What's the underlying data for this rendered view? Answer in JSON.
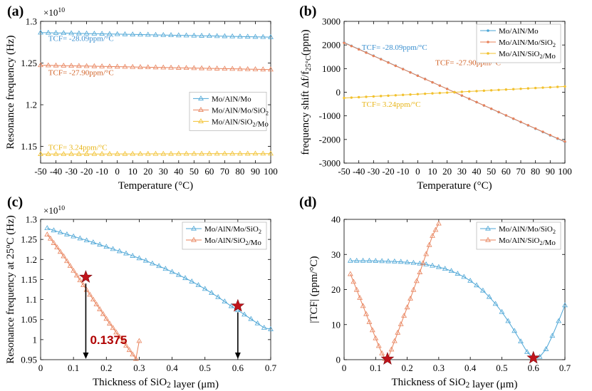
{
  "colors": {
    "mo_aln_mo": "#4da6d6",
    "sio2_top": "#e8815a",
    "sio2_mid": "#f2c12e",
    "star": "#c0141b",
    "tcf_blue": "#3a8fcf",
    "tcf_orange": "#d2642a",
    "tcf_yellow": "#e8b518"
  },
  "chart_data": [
    {
      "type": "line",
      "panel": "(a)",
      "xlabel": "Temperature (°C)",
      "ylabel": "Resonance frequency (Hz)",
      "y_multiplier": "×10",
      "y_exponent": "10",
      "xlim": [
        -50,
        100
      ],
      "ylim": [
        1.13,
        1.3
      ],
      "xticks": [
        -50,
        -40,
        -30,
        -20,
        -10,
        0,
        10,
        20,
        30,
        40,
        50,
        60,
        70,
        80,
        90,
        100
      ],
      "xtick_labels": [
        "-50",
        "-40",
        "-30",
        "-20",
        "-10",
        "0",
        "10",
        "20",
        "30",
        "40",
        "50",
        "60",
        "70",
        "80",
        "90",
        "100"
      ],
      "yticks": [
        1.15,
        1.2,
        1.25,
        1.3
      ],
      "ytick_labels": [
        "1.15",
        "1.2",
        "1.25",
        "1.3"
      ],
      "legend_position": "center-right",
      "series": [
        {
          "name": "Mo/AlN/Mo",
          "name_html": "Mo/AlN/Mo",
          "color": "#4da6d6",
          "marker": "triangle",
          "x_start": -50,
          "x_end": 100,
          "x_step": 5,
          "y_start": 1.2865,
          "y_end": 1.2811
        },
        {
          "name": "Mo/AlN/Mo/SiO2",
          "color": "#e8815a",
          "marker": "triangle",
          "x_start": -50,
          "x_end": 100,
          "x_step": 5,
          "y_start": 1.2474,
          "y_end": 1.2422
        },
        {
          "name": "Mo/AlN/SiO2/Mo",
          "color": "#f2c12e",
          "marker": "triangle",
          "x_start": -50,
          "x_end": 100,
          "x_step": 5,
          "y_start": 1.1408,
          "y_end": 1.1414
        }
      ],
      "annotations": [
        {
          "text": "TCF= -28.09ppm/°C",
          "color": "#3a8fcf",
          "x": -45,
          "y": 1.2765
        },
        {
          "text": "TCF= -27.90ppm/°C",
          "color": "#d2642a",
          "x": -45,
          "y": 1.2355
        },
        {
          "text": "TCF= 3.24ppm/°C",
          "color": "#e8b518",
          "x": -45,
          "y": 1.146
        }
      ]
    },
    {
      "type": "line",
      "panel": "(b)",
      "xlabel": "Temperature (°C)",
      "ylabel": "frequency shift Δf/f",
      "ylabel_sub": "25°C",
      "ylabel_unit": "(ppm)",
      "xlim": [
        -50,
        100
      ],
      "ylim": [
        -3000,
        3000
      ],
      "xticks": [
        -50,
        -40,
        -30,
        -20,
        -10,
        0,
        10,
        20,
        30,
        40,
        50,
        60,
        70,
        80,
        90,
        100
      ],
      "xtick_labels": [
        "-50",
        "-40",
        "-30",
        "-20",
        "-10",
        "0",
        "10",
        "20",
        "30",
        "40",
        "50",
        "60",
        "70",
        "80",
        "90",
        "100"
      ],
      "yticks": [
        -3000,
        -2000,
        -1000,
        0,
        1000,
        2000,
        3000
      ],
      "ytick_labels": [
        "-3000",
        "-2000",
        "-1000",
        "0",
        "1000",
        "2000",
        "3000"
      ],
      "legend_position": "top-right",
      "series": [
        {
          "name": "Mo/AlN/Mo",
          "color": "#4da6d6",
          "marker": "dot",
          "x_start": -50,
          "x_end": 100,
          "x_step": 5,
          "y_start": 2107,
          "y_end": -2107
        },
        {
          "name": "Mo/AlN/Mo/SiO2",
          "color": "#e8815a",
          "marker": "dot",
          "x_start": -50,
          "x_end": 100,
          "x_step": 5,
          "y_start": 2093,
          "y_end": -2093
        },
        {
          "name": "Mo/AlN/SiO2/Mo",
          "color": "#f2c12e",
          "marker": "dot",
          "x_start": -50,
          "x_end": 100,
          "x_step": 5,
          "y_start": -243,
          "y_end": 243
        }
      ],
      "annotations": [
        {
          "text": "TCF= -28.09ppm/°C",
          "color": "#3a8fcf",
          "x": -38,
          "y": 1800
        },
        {
          "text": "TCF= -27.90ppm/°C",
          "color": "#d2642a",
          "x": 12,
          "y": 1150
        },
        {
          "text": "TCF= 3.24ppm/°C",
          "color": "#e8b518",
          "x": -38,
          "y": -620
        }
      ]
    },
    {
      "type": "line",
      "panel": "(c)",
      "xlabel": "Thickness of SiO2 layer (μm)",
      "ylabel": "Resonance frequency at 25°C (Hz)",
      "y_multiplier": "×10",
      "y_exponent": "10",
      "xlim": [
        0,
        0.7
      ],
      "ylim": [
        0.95,
        1.3
      ],
      "xticks": [
        0,
        0.1,
        0.2,
        0.3,
        0.4,
        0.5,
        0.6,
        0.7
      ],
      "xtick_labels": [
        "0",
        "0.1",
        "0.2",
        "0.3",
        "0.4",
        "0.5",
        "0.6",
        "0.7"
      ],
      "yticks": [
        0.95,
        1,
        1.05,
        1.1,
        1.15,
        1.2,
        1.25,
        1.3
      ],
      "ytick_labels": [
        "0.95",
        "1",
        "1.05",
        "1.1",
        "1.15",
        "1.2",
        "1.25",
        "1.3"
      ],
      "legend_position": "top-right",
      "series": [
        {
          "name": "Mo/AlN/Mo/SiO2",
          "color": "#4da6d6",
          "marker": "triangle",
          "x": [
            0.02,
            0.04,
            0.06,
            0.08,
            0.1,
            0.12,
            0.14,
            0.16,
            0.18,
            0.2,
            0.22,
            0.24,
            0.26,
            0.28,
            0.3,
            0.32,
            0.34,
            0.36,
            0.38,
            0.4,
            0.42,
            0.44,
            0.46,
            0.48,
            0.5,
            0.52,
            0.54,
            0.56,
            0.58,
            0.6,
            0.62,
            0.64,
            0.66,
            0.68,
            0.7
          ],
          "y": [
            1.278,
            1.2725,
            1.2675,
            1.2625,
            1.2575,
            1.2525,
            1.2475,
            1.2425,
            1.237,
            1.2315,
            1.226,
            1.2205,
            1.215,
            1.209,
            1.203,
            1.197,
            1.19,
            1.1835,
            1.1765,
            1.169,
            1.1615,
            1.1535,
            1.145,
            1.136,
            1.1265,
            1.1165,
            1.106,
            1.095,
            1.0835,
            1.0735,
            1.0625,
            1.0515,
            1.0405,
            1.0295,
            1.026
          ]
        },
        {
          "name": "Mo/AlN/SiO2/Mo",
          "color": "#e8815a",
          "marker": "triangle",
          "x": [
            0.02,
            0.03,
            0.04,
            0.05,
            0.06,
            0.07,
            0.08,
            0.09,
            0.1,
            0.11,
            0.12,
            0.13,
            0.14,
            0.15,
            0.16,
            0.17,
            0.18,
            0.19,
            0.2,
            0.21,
            0.22,
            0.23,
            0.24,
            0.25,
            0.26,
            0.27,
            0.28,
            0.29,
            0.3
          ],
          "y": [
            1.262,
            1.252,
            1.241,
            1.23,
            1.219,
            1.208,
            1.196,
            1.184,
            1.172,
            1.16,
            1.148,
            1.136,
            1.124,
            1.112,
            1.1,
            1.088,
            1.076,
            1.064,
            1.052,
            1.04,
            1.029,
            1.018,
            1.007,
            0.996,
            0.985,
            0.974,
            0.963,
            0.952,
            0.9965
          ]
        }
      ],
      "markers": [
        {
          "x": 0.1375,
          "y": 1.156,
          "label": "0.1375"
        },
        {
          "x": 0.6,
          "y": 1.084,
          "label": ""
        }
      ]
    },
    {
      "type": "line",
      "panel": "(d)",
      "xlabel": "Thickness of SiO2 layer (μm)",
      "ylabel": "|TCF| (ppm/°C)",
      "xlim": [
        0,
        0.7
      ],
      "ylim": [
        0,
        40
      ],
      "xticks": [
        0,
        0.1,
        0.2,
        0.3,
        0.4,
        0.5,
        0.6,
        0.7
      ],
      "xtick_labels": [
        "0",
        "0.1",
        "0.2",
        "0.3",
        "0.4",
        "0.5",
        "0.6",
        "0.7"
      ],
      "yticks": [
        0,
        10,
        20,
        30,
        40
      ],
      "ytick_labels": [
        "0",
        "10",
        "20",
        "30",
        "40"
      ],
      "legend_position": "top-right",
      "series": [
        {
          "name": "Mo/AlN/Mo/SiO2",
          "color": "#4da6d6",
          "marker": "triangle",
          "x": [
            0.02,
            0.04,
            0.06,
            0.08,
            0.1,
            0.12,
            0.14,
            0.16,
            0.18,
            0.2,
            0.22,
            0.24,
            0.26,
            0.28,
            0.3,
            0.32,
            0.34,
            0.36,
            0.38,
            0.4,
            0.42,
            0.44,
            0.46,
            0.48,
            0.5,
            0.52,
            0.54,
            0.56,
            0.58,
            0.6,
            0.62,
            0.64,
            0.66,
            0.68,
            0.7
          ],
          "y": [
            28.2,
            28.2,
            28.2,
            28.2,
            28.15,
            28.1,
            28.05,
            28.0,
            27.9,
            27.75,
            27.6,
            27.4,
            27.15,
            26.8,
            26.4,
            25.9,
            25.3,
            24.5,
            23.6,
            22.5,
            21.2,
            19.7,
            17.9,
            15.9,
            13.6,
            11.0,
            8.2,
            5.2,
            2.2,
            0.5,
            0.8,
            3.0,
            6.8,
            11.0,
            15.5
          ]
        },
        {
          "name": "Mo/AlN/SiO2/Mo",
          "color": "#e8815a",
          "marker": "triangle",
          "x": [
            0.02,
            0.03,
            0.04,
            0.05,
            0.06,
            0.07,
            0.08,
            0.09,
            0.1,
            0.11,
            0.12,
            0.13,
            0.14,
            0.15,
            0.16,
            0.17,
            0.18,
            0.19,
            0.2,
            0.21,
            0.22,
            0.23,
            0.24,
            0.25,
            0.26,
            0.27,
            0.28,
            0.29,
            0.3
          ],
          "y": [
            24.4,
            22.2,
            19.9,
            17.6,
            15.3,
            13.0,
            10.7,
            8.4,
            6.1,
            3.9,
            1.8,
            0.2,
            0.5,
            2.9,
            5.3,
            7.7,
            10.1,
            12.5,
            14.9,
            17.4,
            19.9,
            22.4,
            24.9,
            27.5,
            30.1,
            32.7,
            35.3,
            37.0,
            38.8
          ]
        }
      ],
      "markers": [
        {
          "x": 0.1375,
          "y": 0.2,
          "label": ""
        },
        {
          "x": 0.6,
          "y": 0.5,
          "label": ""
        }
      ]
    }
  ]
}
